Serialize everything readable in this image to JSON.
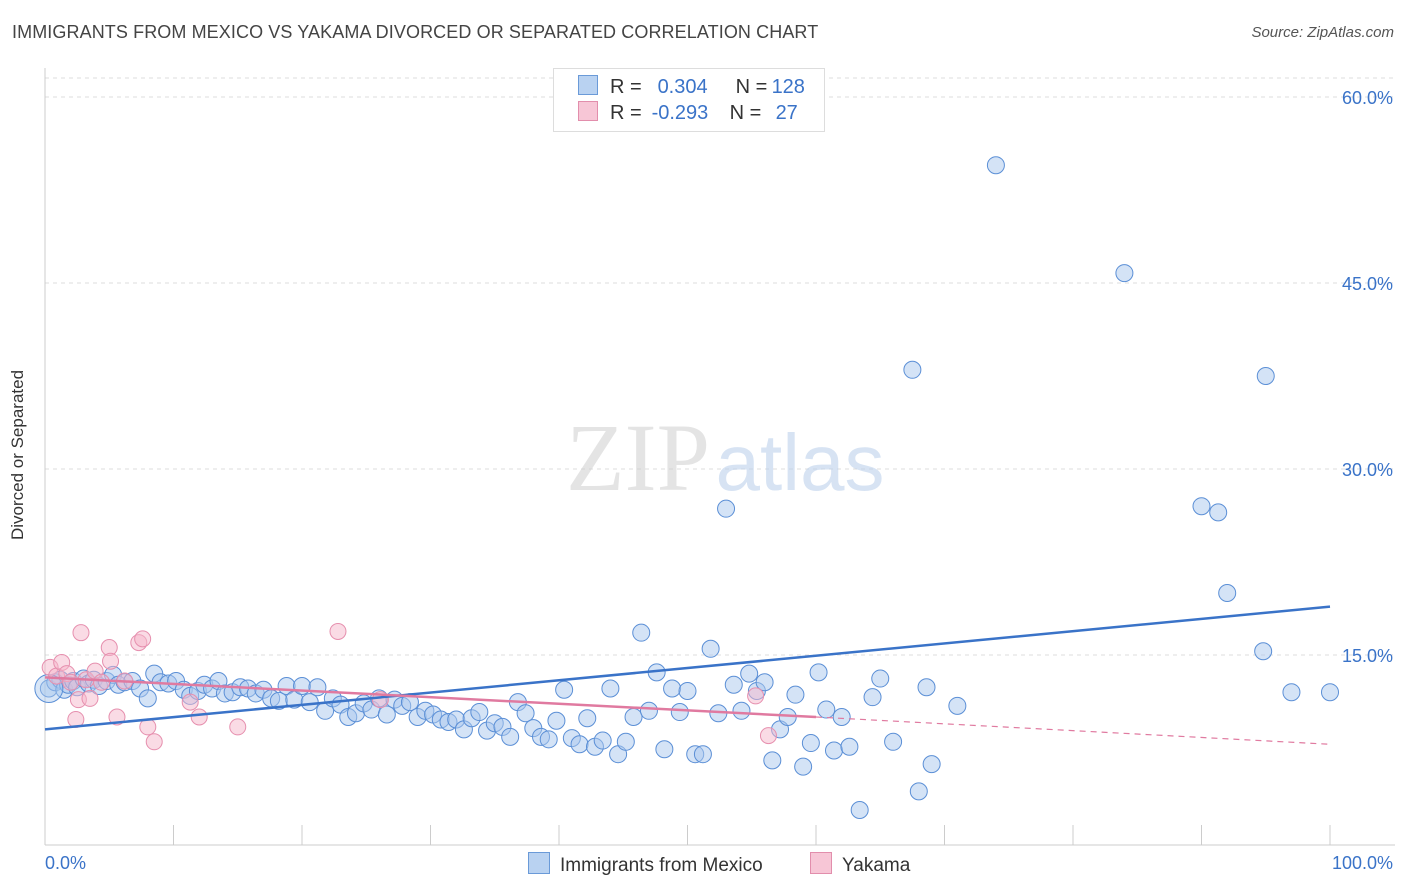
{
  "title": "IMMIGRANTS FROM MEXICO VS YAKAMA DIVORCED OR SEPARATED CORRELATION CHART",
  "source": "Source: ZipAtlas.com",
  "watermark": {
    "zip": "ZIP",
    "atlas": "atlas"
  },
  "colors": {
    "blue": "#3a73c8",
    "blue_fill": "#a9c8ee",
    "pink": "#e07aa0",
    "pink_fill": "#f5b8cc",
    "grid": "#dddddd",
    "tick_label": "#3a73c8"
  },
  "legend": {
    "rows": [
      {
        "r_label": "R =",
        "r_value": "0.304",
        "n_label": "N =",
        "n_value": "128"
      },
      {
        "r_label": "R =",
        "r_value": "-0.293",
        "n_label": "N =",
        "n_value": "27"
      }
    ]
  },
  "bottom_legend": {
    "series1": "Immigrants from Mexico",
    "series2": "Yakama"
  },
  "chart_data": {
    "type": "scatter",
    "ylabel": "Divorced or Separated",
    "xlim": [
      0,
      100
    ],
    "ylim": [
      0,
      60
    ],
    "x_tick_labels": [
      "0.0%",
      "100.0%"
    ],
    "y_ticks": [
      15,
      30,
      45,
      60
    ],
    "y_tick_labels": [
      "15.0%",
      "30.0%",
      "45.0%",
      "60.0%"
    ],
    "grid": true,
    "series": [
      {
        "name": "Immigrants from Mexico",
        "trend": {
          "x": [
            0,
            100
          ],
          "y": [
            9.0,
            18.9
          ]
        },
        "points": [
          [
            0.3,
            12.3
          ],
          [
            0.8,
            12.8
          ],
          [
            1.2,
            13.0
          ],
          [
            1.5,
            12.2
          ],
          [
            1.8,
            12.6
          ],
          [
            2.2,
            12.9
          ],
          [
            2.5,
            12.4
          ],
          [
            3.0,
            13.1
          ],
          [
            3.4,
            12.7
          ],
          [
            3.8,
            13.0
          ],
          [
            4.2,
            12.5
          ],
          [
            4.8,
            12.9
          ],
          [
            5.3,
            13.4
          ],
          [
            5.7,
            12.6
          ],
          [
            6.2,
            12.8
          ],
          [
            6.8,
            12.9
          ],
          [
            7.4,
            12.3
          ],
          [
            8.0,
            11.5
          ],
          [
            8.5,
            13.5
          ],
          [
            9.0,
            12.8
          ],
          [
            9.6,
            12.7
          ],
          [
            10.2,
            12.9
          ],
          [
            10.8,
            12.2
          ],
          [
            11.3,
            11.7
          ],
          [
            11.9,
            12.1
          ],
          [
            12.4,
            12.6
          ],
          [
            13.0,
            12.3
          ],
          [
            13.5,
            12.9
          ],
          [
            14.0,
            11.9
          ],
          [
            14.6,
            12.0
          ],
          [
            15.2,
            12.4
          ],
          [
            15.8,
            12.3
          ],
          [
            16.4,
            11.9
          ],
          [
            17.0,
            12.2
          ],
          [
            17.6,
            11.5
          ],
          [
            18.2,
            11.3
          ],
          [
            18.8,
            12.5
          ],
          [
            19.4,
            11.4
          ],
          [
            20.0,
            12.5
          ],
          [
            20.6,
            11.2
          ],
          [
            21.2,
            12.4
          ],
          [
            21.8,
            10.5
          ],
          [
            22.4,
            11.5
          ],
          [
            23.0,
            11.0
          ],
          [
            23.6,
            10.0
          ],
          [
            24.2,
            10.3
          ],
          [
            24.8,
            11.1
          ],
          [
            25.4,
            10.6
          ],
          [
            26.0,
            11.5
          ],
          [
            26.6,
            10.2
          ],
          [
            27.2,
            11.4
          ],
          [
            27.8,
            10.9
          ],
          [
            28.4,
            11.2
          ],
          [
            29.0,
            10.0
          ],
          [
            29.6,
            10.5
          ],
          [
            30.2,
            10.2
          ],
          [
            30.8,
            9.8
          ],
          [
            31.4,
            9.6
          ],
          [
            32.0,
            9.8
          ],
          [
            32.6,
            9.0
          ],
          [
            33.2,
            9.9
          ],
          [
            33.8,
            10.4
          ],
          [
            34.4,
            8.9
          ],
          [
            35.0,
            9.5
          ],
          [
            35.6,
            9.2
          ],
          [
            36.2,
            8.4
          ],
          [
            36.8,
            11.2
          ],
          [
            37.4,
            10.3
          ],
          [
            38.0,
            9.1
          ],
          [
            38.6,
            8.4
          ],
          [
            39.2,
            8.2
          ],
          [
            39.8,
            9.7
          ],
          [
            40.4,
            12.2
          ],
          [
            41.0,
            8.3
          ],
          [
            41.6,
            7.8
          ],
          [
            42.2,
            9.9
          ],
          [
            42.8,
            7.6
          ],
          [
            43.4,
            8.1
          ],
          [
            44.0,
            12.3
          ],
          [
            44.6,
            7.0
          ],
          [
            45.2,
            8.0
          ],
          [
            45.8,
            10.0
          ],
          [
            46.4,
            16.8
          ],
          [
            47.0,
            10.5
          ],
          [
            47.6,
            13.6
          ],
          [
            48.2,
            7.4
          ],
          [
            48.8,
            12.3
          ],
          [
            49.4,
            10.4
          ],
          [
            50.0,
            12.1
          ],
          [
            50.6,
            7.0
          ],
          [
            51.2,
            7.0
          ],
          [
            51.8,
            15.5
          ],
          [
            52.4,
            10.3
          ],
          [
            53.0,
            26.8
          ],
          [
            53.6,
            12.6
          ],
          [
            54.2,
            10.5
          ],
          [
            54.8,
            13.5
          ],
          [
            55.4,
            12.1
          ],
          [
            56.0,
            12.8
          ],
          [
            56.6,
            6.5
          ],
          [
            57.2,
            9.0
          ],
          [
            57.8,
            10.0
          ],
          [
            58.4,
            11.8
          ],
          [
            59.0,
            6.0
          ],
          [
            59.6,
            7.9
          ],
          [
            60.2,
            13.6
          ],
          [
            60.8,
            10.6
          ],
          [
            61.4,
            7.3
          ],
          [
            62.0,
            10.0
          ],
          [
            62.6,
            7.6
          ],
          [
            63.4,
            2.5
          ],
          [
            64.4,
            11.6
          ],
          [
            65.0,
            13.1
          ],
          [
            66.0,
            8.0
          ],
          [
            67.5,
            38.0
          ],
          [
            68.0,
            4.0
          ],
          [
            68.6,
            12.4
          ],
          [
            69.0,
            6.2
          ],
          [
            71.0,
            10.9
          ],
          [
            74.0,
            54.5
          ],
          [
            90.0,
            27.0
          ],
          [
            91.3,
            26.5
          ],
          [
            92.0,
            20.0
          ],
          [
            94.8,
            15.3
          ],
          [
            97.0,
            12.0
          ],
          [
            100.0,
            12.0
          ],
          [
            84.0,
            45.8
          ],
          [
            95.0,
            37.5
          ]
        ]
      },
      {
        "name": "Yakama",
        "trend": {
          "x": [
            0,
            60
          ],
          "y": [
            13.2,
            10.0
          ],
          "dashed_to": {
            "x": 100,
            "y": 7.8
          }
        },
        "points": [
          [
            0.4,
            14.0
          ],
          [
            0.9,
            13.3
          ],
          [
            1.3,
            14.4
          ],
          [
            1.7,
            13.5
          ],
          [
            2.0,
            12.8
          ],
          [
            2.4,
            9.8
          ],
          [
            2.6,
            11.4
          ],
          [
            2.8,
            16.8
          ],
          [
            3.2,
            13.0
          ],
          [
            3.5,
            11.5
          ],
          [
            3.9,
            13.7
          ],
          [
            4.4,
            12.8
          ],
          [
            5.0,
            15.6
          ],
          [
            5.1,
            14.5
          ],
          [
            5.6,
            10.0
          ],
          [
            6.2,
            12.9
          ],
          [
            7.3,
            16.0
          ],
          [
            7.6,
            16.3
          ],
          [
            8.0,
            9.2
          ],
          [
            8.5,
            8.0
          ],
          [
            11.3,
            11.2
          ],
          [
            12.0,
            10.0
          ],
          [
            15.0,
            9.2
          ],
          [
            22.8,
            16.9
          ],
          [
            26.1,
            11.4
          ],
          [
            55.3,
            11.7
          ],
          [
            56.3,
            8.5
          ]
        ]
      }
    ]
  }
}
